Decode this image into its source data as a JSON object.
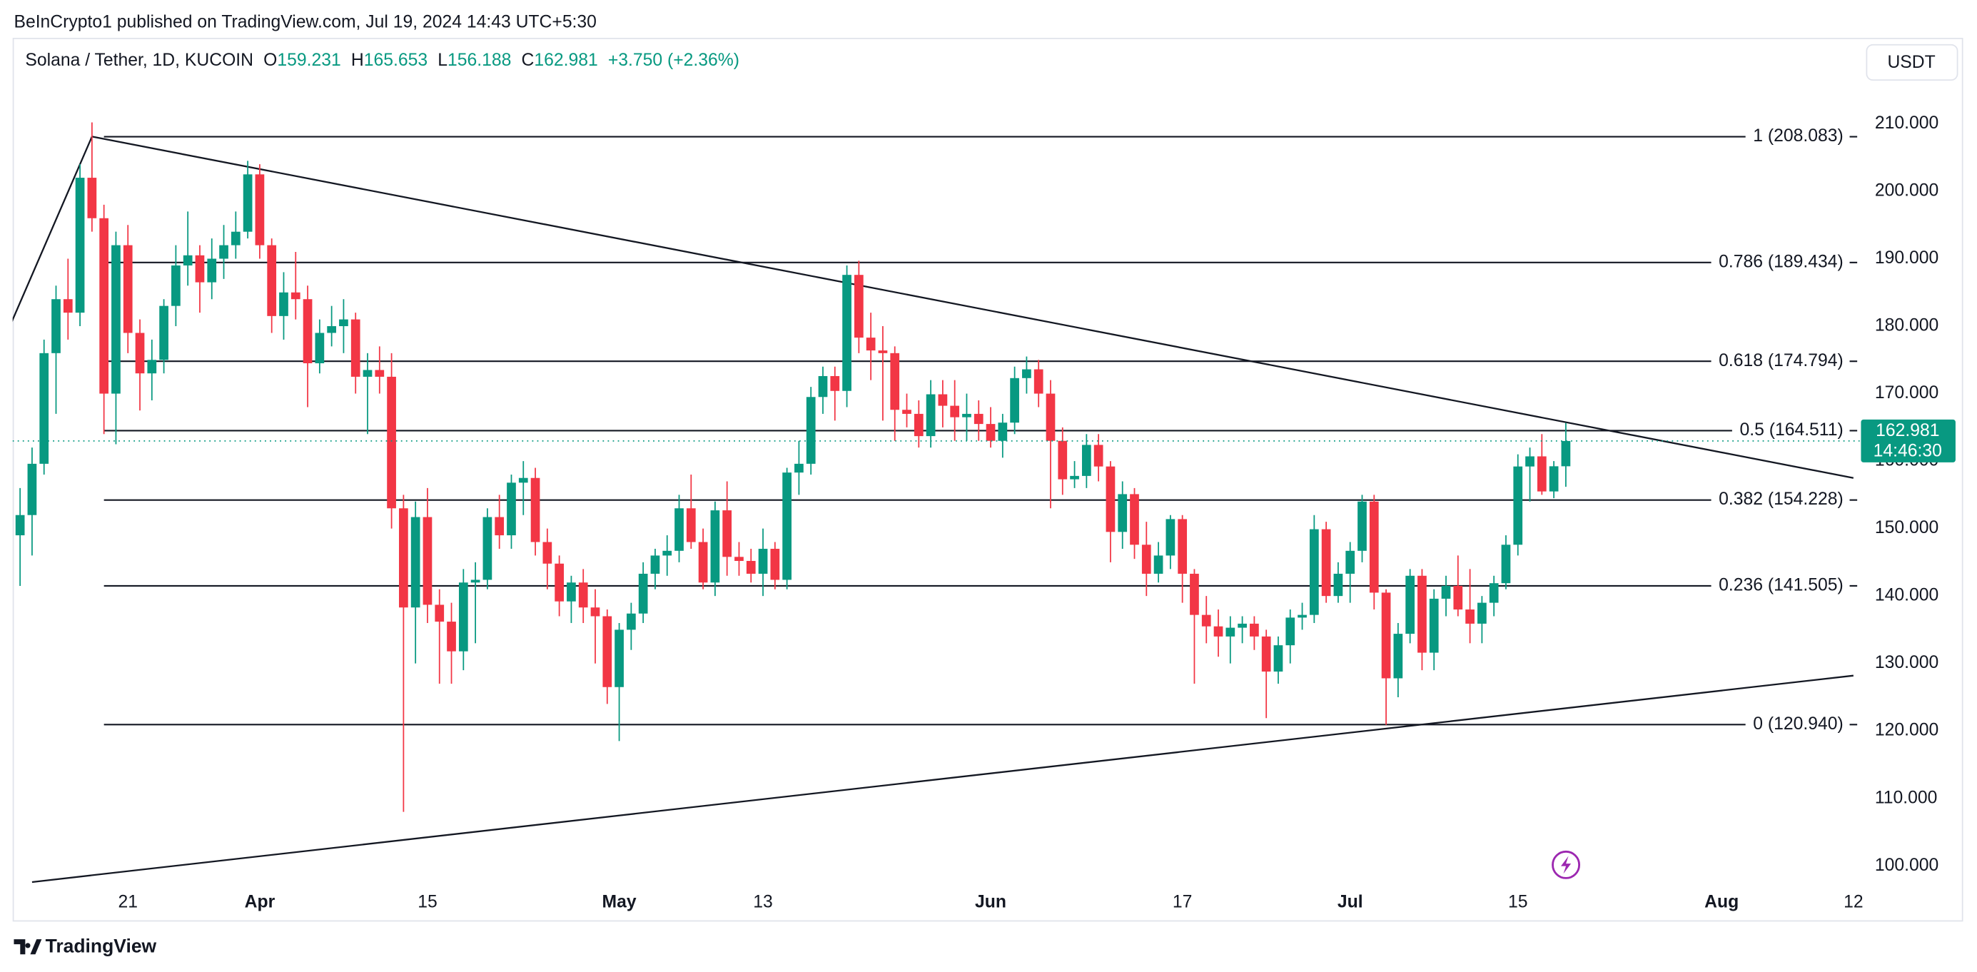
{
  "chart_data": {
    "type": "candlestick",
    "title": "BeInCrypto1 published on TradingView.com, Jul 19, 2024 14:43 UTC+5:30",
    "symbol": "Solana / Tether, 1D, KUCOIN",
    "ohlc_labels": [
      "O",
      "H",
      "L",
      "C"
    ],
    "change": "+3.750 (+2.36%)",
    "currency": "USDT",
    "countdown": "14:46:30",
    "footer": "TradingView",
    "up_color": "#089981",
    "down_color": "#f23645",
    "line_color": "#131722",
    "xlim": [
      "2024-03-11",
      "2024-08-12"
    ],
    "ylim": [
      96.6,
      216.2
    ],
    "yticks": [
      {
        "value": 100,
        "label": "100.000"
      },
      {
        "value": 110,
        "label": "110.000"
      },
      {
        "value": 120,
        "label": "120.000"
      },
      {
        "value": 130,
        "label": "130.000"
      },
      {
        "value": 140,
        "label": "140.000"
      },
      {
        "value": 150,
        "label": "150.000"
      },
      {
        "value": 160,
        "label": "160.000"
      },
      {
        "value": 170,
        "label": "170.000"
      },
      {
        "value": 180,
        "label": "180.000"
      },
      {
        "value": 190,
        "label": "190.000"
      },
      {
        "value": 200,
        "label": "200.000"
      },
      {
        "value": 210,
        "label": "210.000"
      }
    ],
    "xticks": [
      {
        "value": "2024-03-21",
        "label": "21"
      },
      {
        "value": "2024-04-01",
        "label": "Apr"
      },
      {
        "value": "2024-04-15",
        "label": "15"
      },
      {
        "value": "2024-05-01",
        "label": "May"
      },
      {
        "value": "2024-05-13",
        "label": "13"
      },
      {
        "value": "2024-06-01",
        "label": "Jun"
      },
      {
        "value": "2024-06-17",
        "label": "17"
      },
      {
        "value": "2024-07-01",
        "label": "Jul"
      },
      {
        "value": "2024-07-15",
        "label": "15"
      },
      {
        "value": "2024-08-01",
        "label": "Aug"
      },
      {
        "value": "2024-08-12",
        "label": "12"
      }
    ],
    "fib_start": "2024-03-19",
    "fib_levels": [
      {
        "label": "1 (208.083)",
        "value": 208.083
      },
      {
        "label": "0.786 (189.434)",
        "value": 189.434
      },
      {
        "label": "0.618 (174.794)",
        "value": 174.794
      },
      {
        "label": "0.5 (164.511)",
        "value": 164.511
      },
      {
        "label": "0.382 (154.228)",
        "value": 154.228
      },
      {
        "label": "0.236 (141.505)",
        "value": 141.505
      },
      {
        "label": "0 (120.940)",
        "value": 120.94
      }
    ],
    "trend_lines": [
      {
        "x": [
          "2024-03-11",
          "2024-03-18"
        ],
        "y": [
          179.4,
          208.1
        ]
      },
      {
        "x": [
          "2024-03-18",
          "2024-08-12"
        ],
        "y": [
          208.1,
          157.5
        ]
      },
      {
        "x": [
          "2024-03-13",
          "2024-08-12"
        ],
        "y": [
          97.6,
          128.2
        ]
      }
    ],
    "x": [
      "2024-03-12",
      "2024-03-13",
      "2024-03-14",
      "2024-03-15",
      "2024-03-16",
      "2024-03-17",
      "2024-03-18",
      "2024-03-19",
      "2024-03-20",
      "2024-03-21",
      "2024-03-22",
      "2024-03-23",
      "2024-03-24",
      "2024-03-25",
      "2024-03-26",
      "2024-03-27",
      "2024-03-28",
      "2024-03-29",
      "2024-03-30",
      "2024-03-31",
      "2024-04-01",
      "2024-04-02",
      "2024-04-03",
      "2024-04-04",
      "2024-04-05",
      "2024-04-06",
      "2024-04-07",
      "2024-04-08",
      "2024-04-09",
      "2024-04-10",
      "2024-04-11",
      "2024-04-12",
      "2024-04-13",
      "2024-04-14",
      "2024-04-15",
      "2024-04-16",
      "2024-04-17",
      "2024-04-18",
      "2024-04-19",
      "2024-04-20",
      "2024-04-21",
      "2024-04-22",
      "2024-04-23",
      "2024-04-24",
      "2024-04-25",
      "2024-04-26",
      "2024-04-27",
      "2024-04-28",
      "2024-04-29",
      "2024-04-30",
      "2024-05-01",
      "2024-05-02",
      "2024-05-03",
      "2024-05-04",
      "2024-05-05",
      "2024-05-06",
      "2024-05-07",
      "2024-05-08",
      "2024-05-09",
      "2024-05-10",
      "2024-05-11",
      "2024-05-12",
      "2024-05-13",
      "2024-05-14",
      "2024-05-15",
      "2024-05-16",
      "2024-05-17",
      "2024-05-18",
      "2024-05-19",
      "2024-05-20",
      "2024-05-21",
      "2024-05-22",
      "2024-05-23",
      "2024-05-24",
      "2024-05-25",
      "2024-05-26",
      "2024-05-27",
      "2024-05-28",
      "2024-05-29",
      "2024-05-30",
      "2024-05-31",
      "2024-06-01",
      "2024-06-02",
      "2024-06-03",
      "2024-06-04",
      "2024-06-05",
      "2024-06-06",
      "2024-06-07",
      "2024-06-08",
      "2024-06-09",
      "2024-06-10",
      "2024-06-11",
      "2024-06-12",
      "2024-06-13",
      "2024-06-14",
      "2024-06-15",
      "2024-06-16",
      "2024-06-17",
      "2024-06-18",
      "2024-06-19",
      "2024-06-20",
      "2024-06-21",
      "2024-06-22",
      "2024-06-23",
      "2024-06-24",
      "2024-06-25",
      "2024-06-26",
      "2024-06-27",
      "2024-06-28",
      "2024-06-29",
      "2024-06-30",
      "2024-07-01",
      "2024-07-02",
      "2024-07-03",
      "2024-07-04",
      "2024-07-05",
      "2024-07-06",
      "2024-07-07",
      "2024-07-08",
      "2024-07-09",
      "2024-07-10",
      "2024-07-11",
      "2024-07-12",
      "2024-07-13",
      "2024-07-14",
      "2024-07-15",
      "2024-07-16",
      "2024-07-17",
      "2024-07-18",
      "2024-07-19"
    ],
    "ohlc": [
      [
        149,
        156,
        141.5,
        152
      ],
      [
        152,
        162,
        146,
        159.6
      ],
      [
        159.6,
        178,
        158,
        176
      ],
      [
        176,
        186,
        167,
        184
      ],
      [
        184,
        190,
        178,
        182
      ],
      [
        182,
        204,
        180,
        202
      ],
      [
        202,
        210.2,
        194,
        196
      ],
      [
        196,
        198,
        164,
        170
      ],
      [
        170,
        194,
        162.5,
        192
      ],
      [
        192,
        195,
        176,
        179
      ],
      [
        179,
        181,
        167.5,
        173
      ],
      [
        173,
        178,
        169,
        175
      ],
      [
        175,
        184,
        173,
        183
      ],
      [
        183,
        192,
        180,
        189
      ],
      [
        189,
        197,
        186,
        190.5
      ],
      [
        190.5,
        192,
        182,
        186.5
      ],
      [
        186.5,
        193,
        184,
        190
      ],
      [
        190,
        195,
        187,
        192
      ],
      [
        192,
        197,
        190,
        194
      ],
      [
        194,
        204.5,
        193,
        202.5
      ],
      [
        202.5,
        204,
        190,
        192
      ],
      [
        192,
        193,
        179,
        181.5
      ],
      [
        181.5,
        188,
        178,
        185
      ],
      [
        185,
        191,
        181,
        184
      ],
      [
        184,
        186,
        168,
        174.5
      ],
      [
        174.5,
        181,
        173,
        179
      ],
      [
        179,
        183,
        177,
        180
      ],
      [
        180,
        184,
        176,
        181
      ],
      [
        181,
        182,
        170,
        172.5
      ],
      [
        172.5,
        176,
        164,
        173.5
      ],
      [
        173.5,
        177,
        170,
        172.5
      ],
      [
        172.5,
        176,
        150,
        153
      ],
      [
        153,
        155,
        108,
        138.3
      ],
      [
        138.3,
        154,
        130,
        151.7
      ],
      [
        151.7,
        156,
        136,
        138.7
      ],
      [
        138.7,
        141,
        127,
        136.2
      ],
      [
        136.2,
        139,
        127,
        131.8
      ],
      [
        131.8,
        144,
        129,
        142
      ],
      [
        142,
        145,
        133,
        142.4
      ],
      [
        142.4,
        153,
        141,
        151.7
      ],
      [
        151.7,
        155,
        147,
        149
      ],
      [
        149,
        158,
        147,
        156.8
      ],
      [
        156.8,
        160,
        152,
        157.5
      ],
      [
        157.5,
        159,
        146,
        148
      ],
      [
        148,
        150,
        141,
        144.8
      ],
      [
        144.8,
        146,
        137,
        139.2
      ],
      [
        139.2,
        143,
        136,
        142
      ],
      [
        142,
        144,
        136,
        138.3
      ],
      [
        138.3,
        141,
        130,
        137
      ],
      [
        137,
        138,
        124,
        126.5
      ],
      [
        126.5,
        136,
        118.5,
        135
      ],
      [
        135,
        139,
        132,
        137.4
      ],
      [
        137.4,
        145,
        136,
        143.3
      ],
      [
        143.3,
        147,
        141,
        146
      ],
      [
        146,
        149,
        143,
        146.7
      ],
      [
        146.7,
        155,
        145,
        153
      ],
      [
        153,
        158,
        147,
        148
      ],
      [
        148,
        150,
        141,
        142
      ],
      [
        142,
        154,
        140,
        152.7
      ],
      [
        152.7,
        157,
        143,
        145.8
      ],
      [
        145.8,
        148,
        143,
        145.2
      ],
      [
        145.2,
        147,
        142,
        143.3
      ],
      [
        143.3,
        150,
        140,
        147
      ],
      [
        147,
        148,
        141,
        142.4
      ],
      [
        142.4,
        159,
        141,
        158.3
      ],
      [
        158.3,
        163,
        155,
        159.6
      ],
      [
        159.6,
        171,
        158,
        169.5
      ],
      [
        169.5,
        174,
        167,
        172.6
      ],
      [
        172.6,
        174,
        166,
        170.4
      ],
      [
        170.4,
        189,
        168,
        187.6
      ],
      [
        187.6,
        189.7,
        176,
        178.3
      ],
      [
        178.3,
        182,
        172,
        176.4
      ],
      [
        176.4,
        180,
        166,
        176
      ],
      [
        176,
        177,
        163,
        167.6
      ],
      [
        167.6,
        170,
        165,
        167
      ],
      [
        167,
        169,
        162,
        163.7
      ],
      [
        163.7,
        172,
        162,
        169.9
      ],
      [
        169.9,
        172,
        165,
        168.2
      ],
      [
        168.2,
        172,
        163,
        166.5
      ],
      [
        166.5,
        170,
        163,
        167
      ],
      [
        167,
        169,
        163,
        165.5
      ],
      [
        165.5,
        168,
        162,
        163
      ],
      [
        163,
        167,
        160.5,
        165.7
      ],
      [
        165.7,
        174,
        164,
        172.3
      ],
      [
        172.3,
        175.5,
        170,
        173.6
      ],
      [
        173.6,
        175,
        168,
        170
      ],
      [
        170,
        172,
        153,
        163
      ],
      [
        163,
        165,
        155,
        157.3
      ],
      [
        157.3,
        160,
        156,
        157.8
      ],
      [
        157.8,
        164,
        156,
        162.4
      ],
      [
        162.4,
        164,
        157,
        159.2
      ],
      [
        159.2,
        160,
        145,
        149.5
      ],
      [
        149.5,
        157,
        147,
        155.1
      ],
      [
        155.1,
        156,
        145.5,
        147.6
      ],
      [
        147.6,
        151,
        140,
        143.3
      ],
      [
        143.3,
        148,
        142,
        146
      ],
      [
        146,
        152,
        144,
        151.4
      ],
      [
        151.4,
        152,
        139,
        143.3
      ],
      [
        143.3,
        144,
        127,
        137.2
      ],
      [
        137.2,
        140,
        133,
        135.5
      ],
      [
        135.5,
        138,
        131,
        134
      ],
      [
        134,
        137,
        130,
        135.3
      ],
      [
        135.3,
        137,
        133,
        135.9
      ],
      [
        135.9,
        137,
        132,
        134
      ],
      [
        134,
        135,
        121.9,
        128.8
      ],
      [
        128.8,
        134,
        127,
        132.7
      ],
      [
        132.7,
        138,
        130,
        136.8
      ],
      [
        136.8,
        139,
        135,
        137.2
      ],
      [
        137.2,
        152,
        136,
        149.9
      ],
      [
        149.9,
        151,
        139,
        140
      ],
      [
        140,
        145,
        139,
        143.3
      ],
      [
        143.3,
        148,
        139,
        146.7
      ],
      [
        146.7,
        155,
        145,
        154
      ],
      [
        154,
        155,
        138,
        140.5
      ],
      [
        140.5,
        141,
        120.9,
        127.8
      ],
      [
        127.8,
        136,
        125,
        134.4
      ],
      [
        134.4,
        144,
        133,
        143
      ],
      [
        143,
        144,
        129,
        131.6
      ],
      [
        131.6,
        141,
        129,
        139.6
      ],
      [
        139.6,
        143,
        137,
        141.5
      ],
      [
        141.5,
        146,
        137,
        138
      ],
      [
        138,
        144,
        133,
        135.9
      ],
      [
        135.9,
        140,
        133,
        139
      ],
      [
        139,
        143,
        137,
        141.9
      ],
      [
        141.9,
        149,
        141,
        147.6
      ],
      [
        147.6,
        161,
        146,
        159.2
      ],
      [
        159.2,
        162,
        154,
        160.7
      ],
      [
        160.7,
        164,
        155,
        155.5
      ],
      [
        155.5,
        160,
        154.5,
        159.231
      ],
      [
        159.231,
        165.653,
        156.188,
        162.981
      ]
    ]
  }
}
